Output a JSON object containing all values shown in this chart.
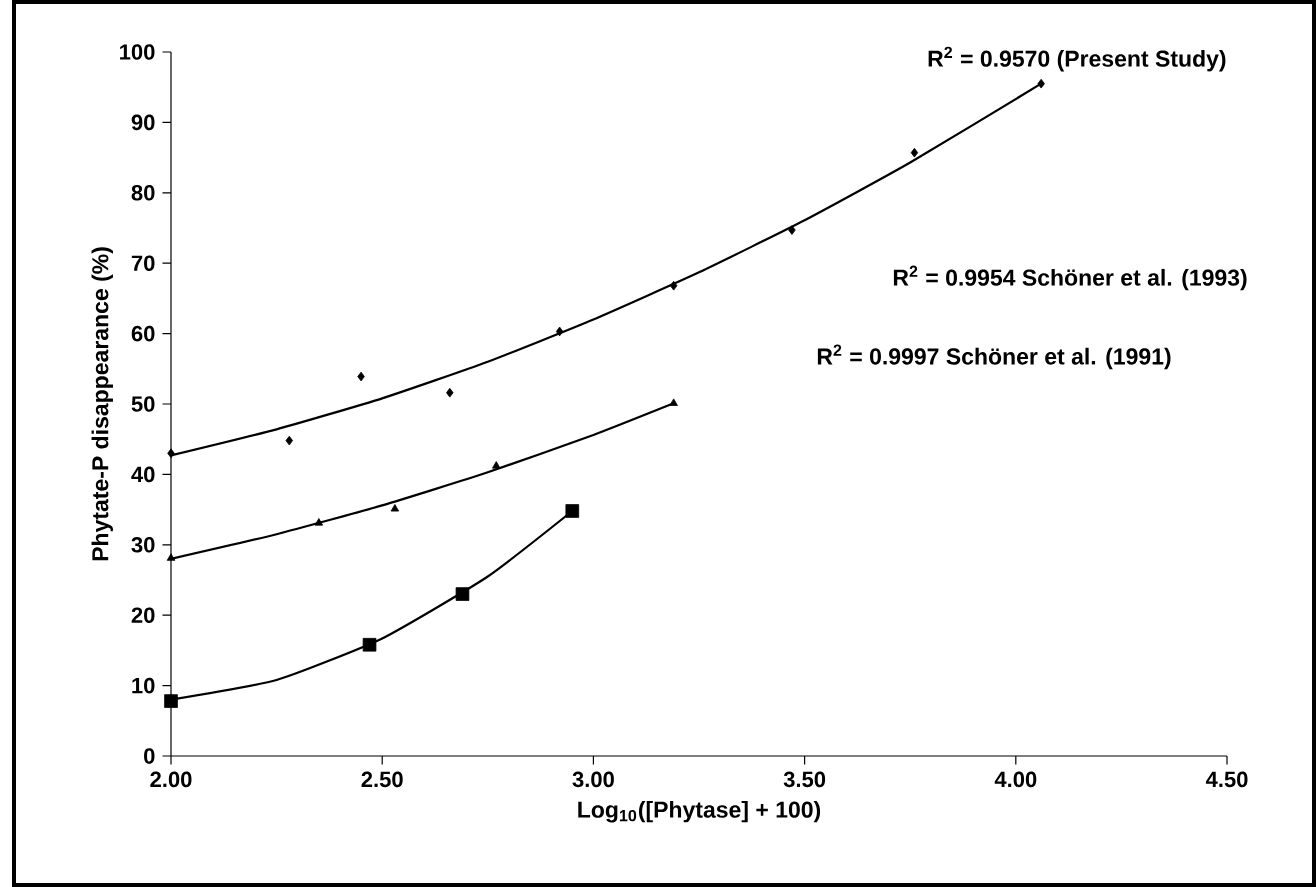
{
  "chart_data": {
    "type": "scatter",
    "xlabel": "Log$_{10}$([Phytase] + 100)",
    "ylabel": "Phytate-P disappearance (%)",
    "xlim": [
      2,
      4.5
    ],
    "ylim": [
      0,
      100
    ],
    "xticks": [
      {
        "value": 2,
        "label": "2.00"
      },
      {
        "value": 2.5,
        "label": "2.50"
      },
      {
        "value": 3,
        "label": "3.00"
      },
      {
        "value": 3.5,
        "label": "3.50"
      },
      {
        "value": 4,
        "label": "4.00"
      },
      {
        "value": 4.5,
        "label": "4.50"
      }
    ],
    "yticks": [
      0,
      10,
      20,
      30,
      40,
      50,
      60,
      70,
      80,
      90,
      100
    ],
    "series": [
      {
        "marker": "diamond",
        "color": "#000000",
        "x": [
          2.0,
          2.28,
          2.45,
          2.66,
          2.92,
          3.19,
          3.47,
          3.76,
          4.06
        ],
        "values": [
          43.0,
          44.8,
          53.9,
          51.6,
          60.3,
          66.8,
          74.7,
          85.7,
          95.5
        ]
      },
      {
        "marker": "triangle",
        "color": "#000000",
        "x": [
          2.0,
          2.35,
          2.53,
          2.77,
          3.19
        ],
        "values": [
          28.1,
          33.1,
          35.1,
          41.2,
          50.1
        ]
      },
      {
        "marker": "square",
        "color": "#000000",
        "x": [
          2.0,
          2.47,
          2.69,
          2.95
        ],
        "values": [
          7.8,
          15.8,
          23.0,
          34.8
        ]
      },
      {
        "type": "line",
        "marker": "none",
        "color": "#000000",
        "x": [
          2.0,
          2.25,
          2.5,
          2.75,
          3.0,
          3.25,
          3.5,
          3.75,
          4.06
        ],
        "values": [
          42.7,
          46.4,
          50.8,
          56.0,
          62.0,
          68.7,
          76.1,
          84.3,
          95.5
        ]
      },
      {
        "type": "line",
        "marker": "none",
        "color": "#000000",
        "x": [
          2.0,
          2.25,
          2.5,
          2.75,
          3.0,
          3.19
        ],
        "values": [
          28.0,
          31.5,
          35.6,
          40.3,
          45.6,
          50.1
        ]
      },
      {
        "type": "line",
        "marker": "none",
        "color": "#000000",
        "x": [
          2.0,
          2.25,
          2.5,
          2.75,
          2.95
        ],
        "values": [
          8.0,
          10.8,
          16.7,
          25.5,
          34.8
        ]
      }
    ],
    "annotations": [
      "R$^{2}$ = 0.9570 (Present Study)",
      "R$^{2}$ = 0.9954 Schöner et al. (1993)",
      "R$^{2}$ = 0.9997 Schöner et al. (1991)"
    ]
  }
}
